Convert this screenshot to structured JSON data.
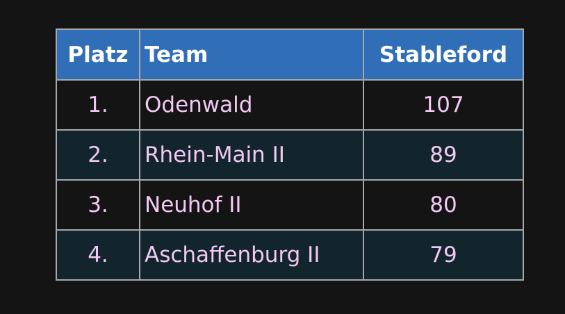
{
  "table": {
    "header": [
      "Platz",
      "Team",
      "Stableford"
    ],
    "rows": [
      [
        "1.",
        "Odenwald",
        "107"
      ],
      [
        "2.",
        "Rhein-Main II",
        "89"
      ],
      [
        "3.",
        "Neuhof II",
        "80"
      ],
      [
        "4.",
        "Aschaffenburg II",
        "79"
      ]
    ]
  }
}
